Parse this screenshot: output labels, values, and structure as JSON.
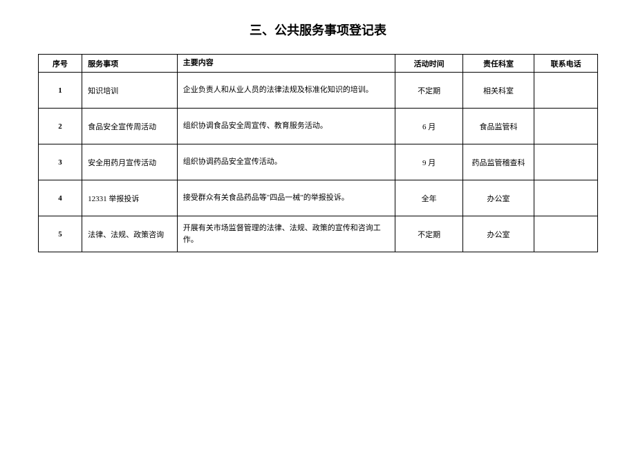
{
  "title": "三、公共服务事项登记表",
  "columns": [
    "序号",
    "服务事项",
    "主要内容",
    "活动时间",
    "责任科室",
    "联系电话"
  ],
  "rows": [
    {
      "seq": "1",
      "service": "知识培训",
      "content": "企业负责人和从业人员的法律法规及标准化知识的培训。",
      "time": "不定期",
      "dept": "相关科室",
      "phone": ""
    },
    {
      "seq": "2",
      "service": "食品安全宣传周活动",
      "content": "组织协调食品安全周宣传、教育服务活动。",
      "time": "6 月",
      "dept": "食品监管科",
      "phone": ""
    },
    {
      "seq": "3",
      "service": "安全用药月宣传活动",
      "content": "组织协调药品安全宣传活动。",
      "time": "9 月",
      "dept": "药品监管稽查科",
      "phone": ""
    },
    {
      "seq": "4",
      "service": "12331 举报投诉",
      "content": "接受群众有关食品药品等\"四品一械\"的举报投诉。",
      "time": "全年",
      "dept": "办公室",
      "phone": ""
    },
    {
      "seq": "5",
      "service": "法律、法规、政策咨询",
      "content": "开展有关市场监督管理的法律、法规、政策的宣传和咨询工作。",
      "time": "不定期",
      "dept": "办公室",
      "phone": ""
    }
  ]
}
